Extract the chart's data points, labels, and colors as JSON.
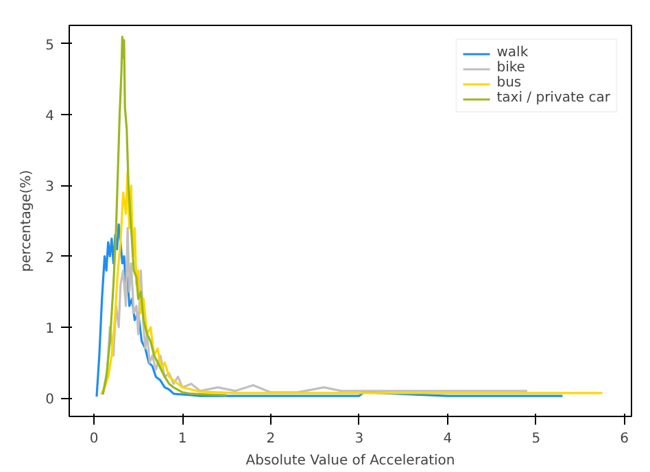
{
  "chart_data": {
    "type": "line",
    "xlabel": "Absolute Value of Acceleration",
    "ylabel": "percentage(%)",
    "xlim": [
      -0.28,
      6.08
    ],
    "ylim": [
      -0.26,
      5.26
    ],
    "xticks": [
      0,
      1,
      2,
      3,
      4,
      5,
      6
    ],
    "yticks": [
      0,
      1,
      2,
      3,
      4,
      5
    ],
    "grid": false,
    "legend": "top right",
    "series": [
      {
        "name": "walk",
        "color": "#1f8ef0",
        "x": [
          0.03,
          0.06,
          0.09,
          0.12,
          0.14,
          0.16,
          0.18,
          0.2,
          0.22,
          0.24,
          0.26,
          0.28,
          0.3,
          0.32,
          0.34,
          0.36,
          0.38,
          0.4,
          0.43,
          0.46,
          0.5,
          0.54,
          0.58,
          0.62,
          0.66,
          0.7,
          0.75,
          0.8,
          0.85,
          0.9,
          1.0,
          1.1,
          1.2,
          1.5,
          2.0,
          3.0,
          3.05,
          4.0,
          5.0,
          5.3
        ],
        "values": [
          0.02,
          0.6,
          1.4,
          2.0,
          1.8,
          2.2,
          2.0,
          2.25,
          1.9,
          2.3,
          2.1,
          2.45,
          2.2,
          1.9,
          2.0,
          1.6,
          1.7,
          1.3,
          1.4,
          1.1,
          1.2,
          0.8,
          0.7,
          0.5,
          0.45,
          0.3,
          0.25,
          0.15,
          0.12,
          0.06,
          0.05,
          0.04,
          0.03,
          0.03,
          0.03,
          0.03,
          0.08,
          0.03,
          0.03,
          0.03
        ]
      },
      {
        "name": "bike",
        "color": "#c0c0c0",
        "x": [
          0.1,
          0.15,
          0.18,
          0.22,
          0.25,
          0.28,
          0.3,
          0.33,
          0.36,
          0.38,
          0.4,
          0.42,
          0.45,
          0.48,
          0.5,
          0.53,
          0.56,
          0.58,
          0.6,
          0.63,
          0.66,
          0.7,
          0.75,
          0.8,
          0.85,
          0.9,
          0.95,
          1.0,
          1.1,
          1.2,
          1.4,
          1.6,
          1.8,
          2.0,
          2.3,
          2.6,
          2.8,
          3.5,
          4.9
        ],
        "values": [
          0.05,
          0.4,
          1.0,
          0.6,
          1.3,
          1.0,
          1.6,
          1.8,
          1.3,
          2.4,
          1.5,
          1.9,
          1.2,
          1.3,
          0.9,
          1.8,
          1.0,
          0.7,
          0.9,
          0.5,
          0.6,
          0.4,
          0.6,
          0.3,
          0.35,
          0.2,
          0.3,
          0.15,
          0.2,
          0.1,
          0.15,
          0.1,
          0.18,
          0.08,
          0.08,
          0.15,
          0.1,
          0.1,
          0.1
        ]
      },
      {
        "name": "bus",
        "color": "#ffd700",
        "x": [
          0.08,
          0.12,
          0.16,
          0.2,
          0.24,
          0.27,
          0.3,
          0.33,
          0.36,
          0.38,
          0.4,
          0.42,
          0.44,
          0.46,
          0.48,
          0.5,
          0.53,
          0.56,
          0.6,
          0.64,
          0.68,
          0.72,
          0.76,
          0.8,
          0.85,
          0.9,
          0.95,
          1.0,
          1.1,
          1.2,
          1.4,
          1.6,
          2.0,
          3.0,
          4.0,
          5.0,
          5.75
        ],
        "values": [
          0.05,
          0.15,
          0.3,
          0.6,
          1.2,
          1.8,
          2.2,
          2.9,
          2.6,
          3.2,
          2.4,
          3.0,
          2.0,
          2.4,
          1.6,
          1.8,
          1.2,
          1.4,
          0.9,
          1.0,
          0.6,
          0.7,
          0.4,
          0.5,
          0.3,
          0.25,
          0.2,
          0.15,
          0.12,
          0.09,
          0.08,
          0.07,
          0.07,
          0.07,
          0.07,
          0.07,
          0.07
        ]
      },
      {
        "name": "taxi / private car",
        "color": "#9ab81e",
        "x": [
          0.1,
          0.14,
          0.18,
          0.22,
          0.25,
          0.27,
          0.29,
          0.31,
          0.32,
          0.33,
          0.34,
          0.35,
          0.37,
          0.39,
          0.41,
          0.43,
          0.45,
          0.48,
          0.5,
          0.53,
          0.56,
          0.6,
          0.64,
          0.68,
          0.72,
          0.76,
          0.8,
          0.85,
          0.9,
          1.0,
          1.1,
          1.3,
          1.5
        ],
        "values": [
          0.05,
          0.3,
          0.8,
          1.6,
          2.4,
          3.2,
          4.0,
          4.6,
          5.1,
          4.8,
          5.05,
          4.1,
          3.8,
          3.0,
          2.6,
          2.2,
          1.8,
          1.7,
          1.4,
          1.5,
          1.1,
          0.9,
          0.8,
          0.6,
          0.5,
          0.4,
          0.3,
          0.2,
          0.15,
          0.08,
          0.06,
          0.05,
          0.04
        ]
      }
    ]
  }
}
